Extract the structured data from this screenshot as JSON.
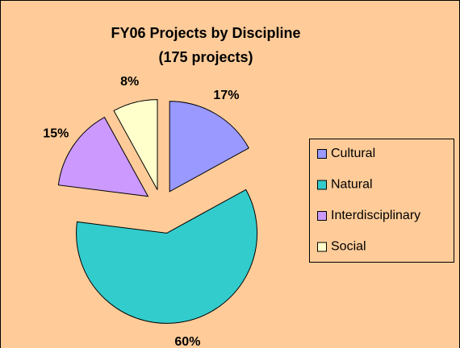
{
  "chart_data": {
    "type": "pie",
    "title": "FY06 Projects by Discipline",
    "subtitle": "(175 projects)",
    "categories": [
      "Cultural",
      "Natural",
      "Interdisciplinary",
      "Social"
    ],
    "values": [
      17,
      60,
      15,
      8
    ],
    "value_labels": [
      "17%",
      "60%",
      "15%",
      "8%"
    ],
    "colors": [
      "#9999ff",
      "#33cccc",
      "#cc99ff",
      "#ffffcc"
    ],
    "legend": "right"
  }
}
